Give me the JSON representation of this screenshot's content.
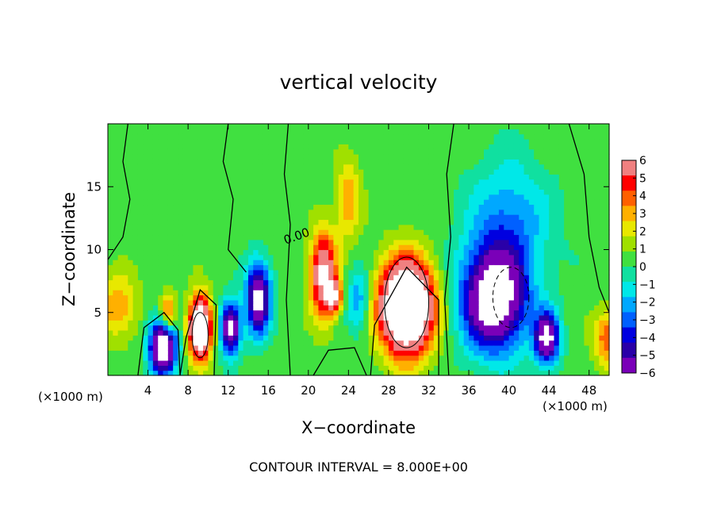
{
  "chart_data": {
    "type": "heatmap",
    "title": "vertical velocity",
    "xlabel": "X−coordinate",
    "ylabel": "Z−coordinate",
    "x_unit": "(×1000 m)",
    "x_unit_right": "(×1000 m)",
    "xlim": [
      0,
      50
    ],
    "ylim": [
      0,
      20
    ],
    "x_ticks": [
      4,
      8,
      12,
      16,
      20,
      24,
      28,
      32,
      36,
      40,
      44,
      48
    ],
    "y_ticks": [
      5,
      10,
      15
    ],
    "contour_interval_text": "CONTOUR INTERVAL = 8.000E+00",
    "contour_label": "0.00",
    "colorbar": {
      "ticks": [
        "6",
        "5",
        "4",
        "3",
        "2",
        "1",
        "0",
        "−1",
        "−2",
        "−3",
        "−4",
        "−5",
        "−6"
      ],
      "range": [
        -6,
        6
      ],
      "colors": [
        "#7a00b8",
        "#2a00a8",
        "#0000e0",
        "#0060ff",
        "#00a8ff",
        "#00e8e8",
        "#10e0a0",
        "#40e040",
        "#a0e000",
        "#e8e800",
        "#ffb000",
        "#ff6000",
        "#ff0000",
        "#f08080"
      ]
    },
    "features": [
      {
        "kind": "updraft",
        "x": 6,
        "z": 4.8,
        "sx": 0.8,
        "sz": 1.6,
        "amp": 5
      },
      {
        "kind": "downdraft",
        "x": 5.5,
        "z": 2.4,
        "sx": 1.3,
        "sz": 2.2,
        "amp": -10
      },
      {
        "kind": "updraft",
        "x": 9.2,
        "z": 3.8,
        "sx": 1.1,
        "sz": 2.4,
        "amp": 11
      },
      {
        "kind": "downdraft",
        "x": 12.2,
        "z": 3.8,
        "sx": 1.0,
        "sz": 2.0,
        "amp": -8
      },
      {
        "kind": "downdraft",
        "x": 15.0,
        "z": 6.2,
        "sx": 1.2,
        "sz": 2.8,
        "amp": -8
      },
      {
        "kind": "updraft",
        "x": 21.5,
        "z": 8.0,
        "sx": 1.3,
        "sz": 3.5,
        "amp": 7
      },
      {
        "kind": "updraft",
        "x": 22.6,
        "z": 6.3,
        "sx": 0.8,
        "sz": 1.2,
        "amp": 5
      },
      {
        "kind": "downdraft",
        "x": 25.0,
        "z": 6.0,
        "sx": 1.1,
        "sz": 2.5,
        "amp": -3
      },
      {
        "kind": "updraft",
        "x": 29.8,
        "z": 5.5,
        "sx": 2.6,
        "sz": 3.6,
        "amp": 13
      },
      {
        "kind": "downdraft",
        "x": 38.5,
        "z": 6.0,
        "sx": 3.2,
        "sz": 4.0,
        "amp": -9
      },
      {
        "kind": "downdraft",
        "x": 40.0,
        "z": 12.0,
        "sx": 4.0,
        "sz": 5.0,
        "amp": -3
      },
      {
        "kind": "downdraft",
        "x": 43.8,
        "z": 3.0,
        "sx": 1.2,
        "sz": 2.0,
        "amp": -8
      },
      {
        "kind": "updraft",
        "x": 50.0,
        "z": 3.0,
        "sx": 1.5,
        "sz": 2.2,
        "amp": 4
      },
      {
        "kind": "updraft",
        "x": 1.0,
        "z": 5.5,
        "sx": 2.0,
        "sz": 2.5,
        "amp": 3
      },
      {
        "kind": "updraft",
        "x": 24.0,
        "z": 14.0,
        "sx": 1.2,
        "sz": 3.0,
        "amp": 3
      }
    ]
  }
}
